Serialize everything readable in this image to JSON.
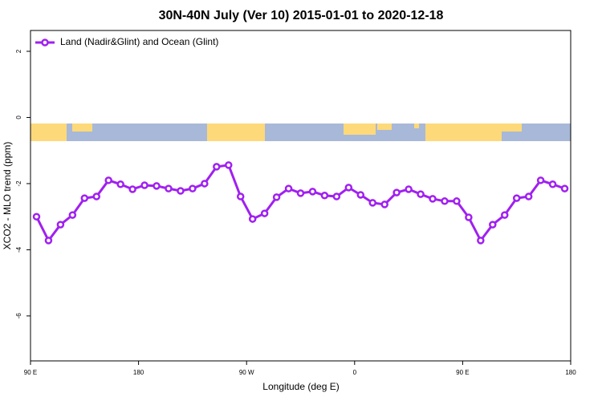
{
  "chart_data": {
    "type": "line",
    "title": "30N-40N July (Ver 10)   2015-01-01 to 2020-12-18",
    "x_label": "Longitude (deg E)",
    "y_label": "XCO2 - MLO trend (ppm)",
    "x": [
      95,
      105,
      115,
      125,
      135,
      145,
      155,
      165,
      175,
      185,
      195,
      205,
      215,
      225,
      235,
      245,
      255,
      265,
      275,
      285,
      295,
      305,
      315,
      325,
      335,
      345,
      355,
      365,
      375,
      385,
      395,
      405,
      415,
      425,
      435,
      445,
      455,
      465,
      475,
      485,
      495,
      505,
      515,
      525,
      535
    ],
    "series": [
      {
        "name": "Land (Nadir&Glint) and Ocean (Glint)",
        "color": "#a020f0",
        "values": [
          -3.0,
          -3.72,
          -3.24,
          -2.95,
          -2.44,
          -2.39,
          -1.9,
          -2.02,
          -2.17,
          -2.05,
          -2.07,
          -2.15,
          -2.22,
          -2.15,
          -2.0,
          -1.49,
          -1.44,
          -2.39,
          -3.07,
          -2.9,
          -2.41,
          -2.15,
          -2.29,
          -2.24,
          -2.36,
          -2.39,
          -2.12,
          -2.34,
          -2.58,
          -2.63,
          -2.27,
          -2.17,
          -2.32,
          -2.46,
          -2.53,
          -2.53,
          -3.02,
          -3.72,
          -3.24,
          -2.95,
          -2.44,
          -2.39,
          -1.9,
          -2.02,
          -2.15
        ]
      }
    ],
    "xlim": [
      90,
      540
    ],
    "xticks": [
      {
        "value": 90,
        "label": "90 E"
      },
      180,
      {
        "value": 270,
        "label": "90 W"
      },
      {
        "value": 360,
        "label": "0"
      },
      {
        "value": 450,
        "label": "90 E"
      },
      {
        "value": 540,
        "label": "180"
      }
    ],
    "ylim": [
      -7.36,
      2.63
    ],
    "yticks": [
      2,
      0,
      -2,
      -4,
      -6
    ],
    "legend": "top-left"
  }
}
